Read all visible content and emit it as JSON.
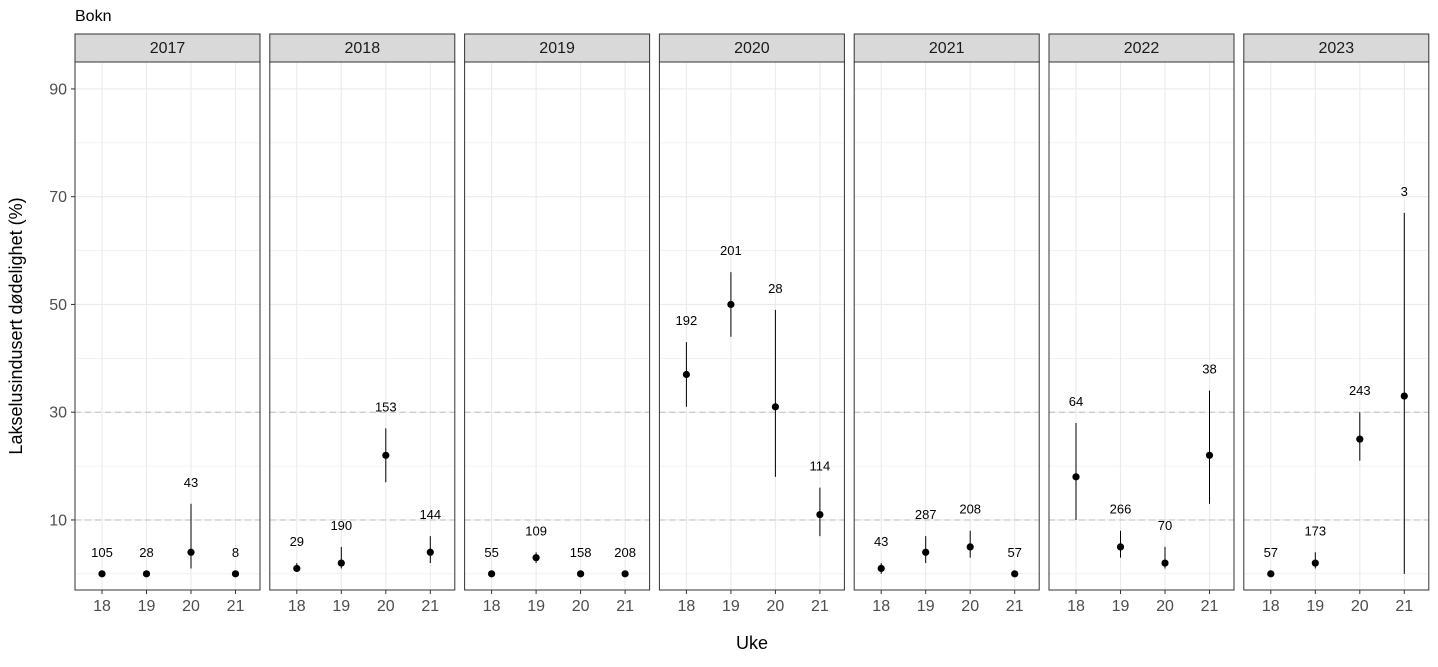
{
  "chart_data": {
    "type": "scatter",
    "title": "Bokn",
    "xlabel": "Uke",
    "ylabel": "Lakselusindusert dødelighet (%)",
    "ylim": [
      -3,
      95
    ],
    "yticks": [
      10,
      30,
      50,
      70,
      90
    ],
    "reference_lines": [
      10,
      30
    ],
    "grid": true,
    "weeks": [
      "18",
      "19",
      "20",
      "21"
    ],
    "panels": [
      {
        "label": "2017",
        "points": [
          {
            "week": "18",
            "value": 0,
            "low": 0,
            "high": 0,
            "n": "105"
          },
          {
            "week": "19",
            "value": 0,
            "low": 0,
            "high": 0,
            "n": "28"
          },
          {
            "week": "20",
            "value": 4,
            "low": 1,
            "high": 13,
            "n": "43"
          },
          {
            "week": "21",
            "value": 0,
            "low": 0,
            "high": 0,
            "n": "8"
          }
        ]
      },
      {
        "label": "2018",
        "points": [
          {
            "week": "18",
            "value": 1,
            "low": 0.5,
            "high": 2,
            "n": "29"
          },
          {
            "week": "19",
            "value": 2,
            "low": 1,
            "high": 5,
            "n": "190"
          },
          {
            "week": "20",
            "value": 22,
            "low": 17,
            "high": 27,
            "n": "153"
          },
          {
            "week": "21",
            "value": 4,
            "low": 2,
            "high": 7,
            "n": "144"
          }
        ]
      },
      {
        "label": "2019",
        "points": [
          {
            "week": "18",
            "value": 0,
            "low": 0,
            "high": 0,
            "n": "55"
          },
          {
            "week": "19",
            "value": 3,
            "low": 2,
            "high": 4,
            "n": "109"
          },
          {
            "week": "20",
            "value": 0,
            "low": 0,
            "high": 0,
            "n": "158"
          },
          {
            "week": "21",
            "value": 0,
            "low": 0,
            "high": 0,
            "n": "208"
          }
        ]
      },
      {
        "label": "2020",
        "points": [
          {
            "week": "18",
            "value": 37,
            "low": 31,
            "high": 43,
            "n": "192"
          },
          {
            "week": "19",
            "value": 50,
            "low": 44,
            "high": 56,
            "n": "201"
          },
          {
            "week": "20",
            "value": 31,
            "low": 18,
            "high": 49,
            "n": "28"
          },
          {
            "week": "21",
            "value": 11,
            "low": 7,
            "high": 16,
            "n": "114"
          }
        ]
      },
      {
        "label": "2021",
        "points": [
          {
            "week": "18",
            "value": 1,
            "low": 0,
            "high": 2,
            "n": "43"
          },
          {
            "week": "19",
            "value": 4,
            "low": 2,
            "high": 7,
            "n": "287"
          },
          {
            "week": "20",
            "value": 5,
            "low": 3,
            "high": 8,
            "n": "208"
          },
          {
            "week": "21",
            "value": 0,
            "low": 0,
            "high": 0,
            "n": "57"
          }
        ]
      },
      {
        "label": "2022",
        "points": [
          {
            "week": "18",
            "value": 18,
            "low": 10,
            "high": 28,
            "n": "64"
          },
          {
            "week": "19",
            "value": 5,
            "low": 3,
            "high": 8,
            "n": "266"
          },
          {
            "week": "20",
            "value": 2,
            "low": 1,
            "high": 5,
            "n": "70"
          },
          {
            "week": "21",
            "value": 22,
            "low": 13,
            "high": 34,
            "n": "38"
          }
        ]
      },
      {
        "label": "2023",
        "points": [
          {
            "week": "18",
            "value": 0,
            "low": 0,
            "high": 0,
            "n": "57"
          },
          {
            "week": "19",
            "value": 2,
            "low": 1,
            "high": 4,
            "n": "173"
          },
          {
            "week": "20",
            "value": 25,
            "low": 21,
            "high": 30,
            "n": "243"
          },
          {
            "week": "21",
            "value": 33,
            "low": 0,
            "high": 67,
            "n": "3"
          }
        ]
      }
    ]
  }
}
